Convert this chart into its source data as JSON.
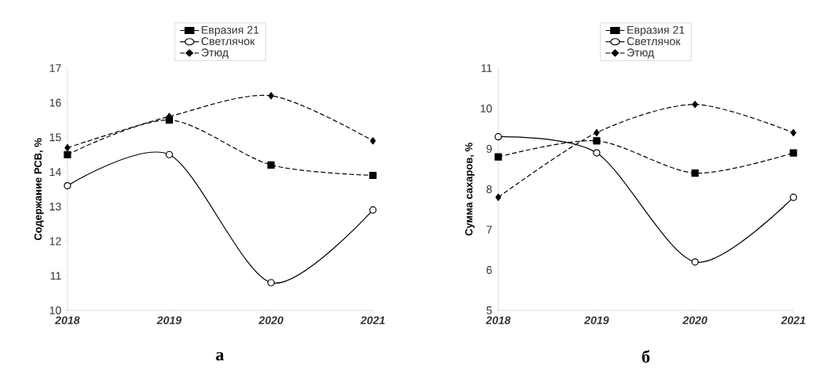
{
  "chart_data": [
    {
      "type": "line",
      "categories": [
        "2018",
        "2019",
        "2020",
        "2021"
      ],
      "ylabel": "Содержание РСВ, %",
      "ylim": [
        10,
        17
      ],
      "yticks": [
        10,
        11,
        12,
        13,
        14,
        15,
        16,
        17
      ],
      "legend": "top",
      "annotations": [
        "а"
      ],
      "series": [
        {
          "name": "Евразия 21",
          "color": "#000000",
          "marker": "square",
          "line_style": "dashed",
          "values": [
            14.5,
            15.5,
            14.2,
            13.9
          ]
        },
        {
          "name": "Светлячок",
          "color": "#000000",
          "marker": "circle",
          "line_style": "solid",
          "values": [
            13.6,
            14.5,
            10.8,
            12.9
          ]
        },
        {
          "name": "Этюд",
          "color": "#000000",
          "marker": "diamond",
          "line_style": "dashed",
          "values": [
            14.7,
            15.6,
            16.2,
            14.9
          ]
        }
      ]
    },
    {
      "type": "line",
      "categories": [
        "2018",
        "2019",
        "2020",
        "2021"
      ],
      "ylabel": "Сумма сахаров, %",
      "ylim": [
        5,
        11
      ],
      "yticks": [
        5,
        6,
        7,
        8,
        9,
        10,
        11
      ],
      "legend": "top",
      "annotations": [
        "б"
      ],
      "series": [
        {
          "name": "Евразия 21",
          "color": "#000000",
          "marker": "square",
          "line_style": "dashed",
          "values": [
            8.8,
            9.2,
            8.4,
            8.9
          ]
        },
        {
          "name": "Светлячок",
          "color": "#000000",
          "marker": "circle",
          "line_style": "solid",
          "values": [
            9.3,
            8.9,
            6.2,
            7.8
          ]
        },
        {
          "name": "Этюд",
          "color": "#000000",
          "marker": "diamond",
          "line_style": "dashed",
          "values": [
            7.8,
            9.4,
            10.1,
            9.4
          ]
        }
      ]
    }
  ]
}
